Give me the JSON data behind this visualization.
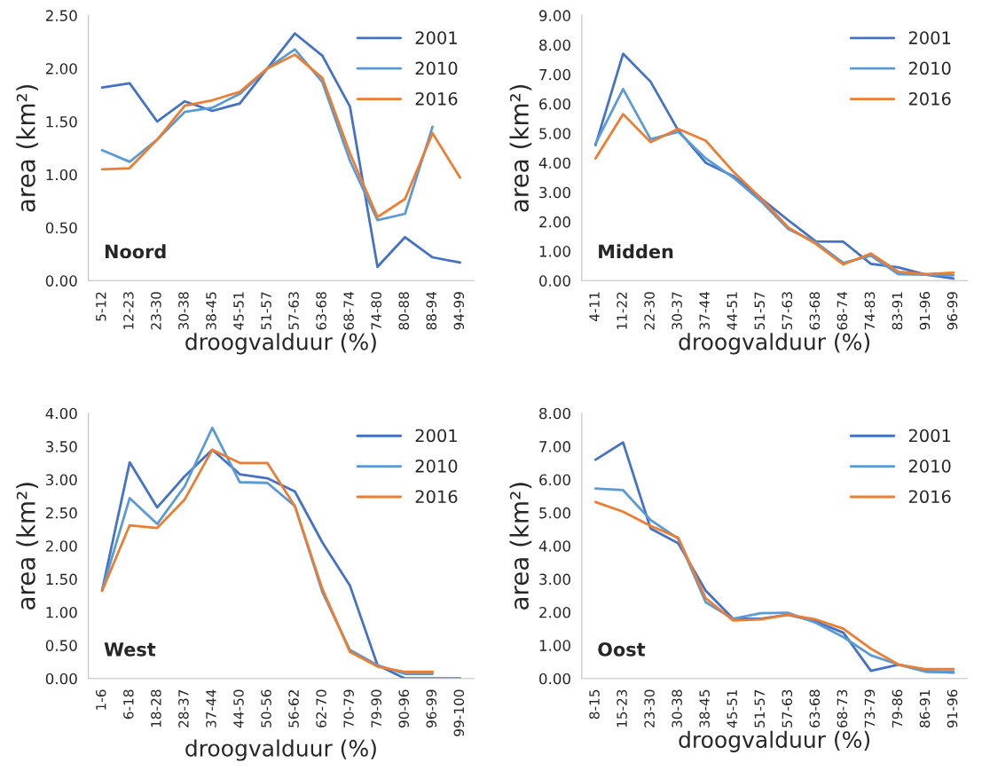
{
  "chart_data": [
    {
      "type": "line",
      "xlabel": "droogvalduur (%)",
      "ylabel": "area (km²)",
      "annotations": [
        "Noord"
      ],
      "legend": "top right",
      "grid": false,
      "categories": [
        "5-12",
        "12-23",
        "23-30",
        "30-38",
        "38-45",
        "45-51",
        "51-57",
        "57-63",
        "63-68",
        "68-74",
        "74-80",
        "80-88",
        "88-94",
        "94-99"
      ],
      "ylim": [
        0,
        2.5
      ],
      "yticks": [
        {
          "value": 0,
          "label": "0.00"
        },
        {
          "value": 0.5,
          "label": "0.50"
        },
        {
          "value": 1,
          "label": "1.00"
        },
        {
          "value": 1.5,
          "label": "1.50"
        },
        {
          "value": 2,
          "label": "2.00"
        },
        {
          "value": 2.5,
          "label": "2.50"
        }
      ],
      "series": [
        {
          "name": "2001",
          "color": "#4472c4",
          "values": [
            1.82,
            1.86,
            1.5,
            1.69,
            1.6,
            1.67,
            2.0,
            2.33,
            2.12,
            1.64,
            0.13,
            0.41,
            0.22,
            0.17
          ]
        },
        {
          "name": "2010",
          "color": "#5b9bd5",
          "values": [
            1.23,
            1.12,
            1.33,
            1.59,
            1.63,
            1.76,
            2.0,
            2.18,
            1.87,
            1.13,
            0.57,
            0.63,
            1.45,
            null
          ]
        },
        {
          "name": "2016",
          "color": "#ed7d31",
          "values": [
            1.05,
            1.06,
            1.33,
            1.65,
            1.7,
            1.78,
            2.0,
            2.13,
            1.91,
            1.2,
            0.6,
            0.77,
            1.39,
            0.97
          ]
        }
      ]
    },
    {
      "type": "line",
      "xlabel": "droogvalduur (%)",
      "ylabel": "area (km²)",
      "annotations": [
        "Midden"
      ],
      "legend": "top right",
      "grid": false,
      "categories": [
        "4-11",
        "11-22",
        "22-30",
        "30-37",
        "37-44",
        "44-51",
        "51-57",
        "57-63",
        "63-68",
        "68-74",
        "74-83",
        "83-91",
        "91-96",
        "96-99"
      ],
      "ylim": [
        0,
        9
      ],
      "yticks": [
        {
          "value": 0,
          "label": "0.00"
        },
        {
          "value": 1,
          "label": "1.00"
        },
        {
          "value": 2,
          "label": "2.00"
        },
        {
          "value": 3,
          "label": "3.00"
        },
        {
          "value": 4,
          "label": "4.00"
        },
        {
          "value": 5,
          "label": "5.00"
        },
        {
          "value": 6,
          "label": "6.00"
        },
        {
          "value": 7,
          "label": "7.00"
        },
        {
          "value": 8,
          "label": "8.00"
        },
        {
          "value": 9,
          "label": "9.00"
        }
      ],
      "series": [
        {
          "name": "2001",
          "color": "#4472c4",
          "values": [
            4.6,
            7.7,
            6.75,
            5.1,
            4.0,
            3.55,
            2.8,
            2.05,
            1.33,
            1.32,
            0.57,
            0.45,
            0.2,
            0.07
          ]
        },
        {
          "name": "2010",
          "color": "#5b9bd5",
          "values": [
            4.65,
            6.5,
            4.8,
            5.05,
            4.15,
            3.5,
            2.7,
            1.75,
            1.3,
            0.6,
            0.85,
            0.22,
            0.2,
            0.18
          ]
        },
        {
          "name": "2016",
          "color": "#ed7d31",
          "values": [
            4.15,
            5.65,
            4.7,
            5.15,
            4.75,
            3.7,
            2.8,
            1.8,
            1.25,
            0.55,
            0.92,
            0.3,
            0.22,
            0.27
          ]
        }
      ]
    },
    {
      "type": "line",
      "xlabel": "droogvalduur (%)",
      "ylabel": "area (km²)",
      "annotations": [
        "West"
      ],
      "legend": "top right",
      "grid": false,
      "categories": [
        "1-6",
        "6-18",
        "18-28",
        "28-37",
        "37-44",
        "44-50",
        "50-56",
        "56-62",
        "62-70",
        "70-79",
        "79-90",
        "90-96",
        "96-99",
        "99-100"
      ],
      "ylim": [
        0,
        4
      ],
      "yticks": [
        {
          "value": 0,
          "label": "0.00"
        },
        {
          "value": 0.5,
          "label": "0.50"
        },
        {
          "value": 1,
          "label": "1.00"
        },
        {
          "value": 1.5,
          "label": "1.50"
        },
        {
          "value": 2,
          "label": "2.00"
        },
        {
          "value": 2.5,
          "label": "2.50"
        },
        {
          "value": 3,
          "label": "3.00"
        },
        {
          "value": 3.5,
          "label": "3.50"
        },
        {
          "value": 4,
          "label": "4.00"
        }
      ],
      "series": [
        {
          "name": "2001",
          "color": "#4472c4",
          "values": [
            1.33,
            3.26,
            2.58,
            3.05,
            3.45,
            3.08,
            3.02,
            2.82,
            2.05,
            1.4,
            0.2,
            0.0,
            0.0,
            0.0
          ]
        },
        {
          "name": "2010",
          "color": "#5b9bd5",
          "values": [
            1.33,
            2.72,
            2.33,
            2.9,
            3.78,
            2.96,
            2.95,
            2.6,
            1.3,
            0.43,
            0.2,
            0.07,
            0.07,
            null
          ]
        },
        {
          "name": "2016",
          "color": "#ed7d31",
          "values": [
            1.32,
            2.31,
            2.27,
            2.7,
            3.45,
            3.25,
            3.25,
            2.6,
            1.35,
            0.4,
            0.18,
            0.1,
            0.1,
            null
          ]
        }
      ]
    },
    {
      "type": "line",
      "xlabel": "droogvalduur (%)",
      "ylabel": "area (km²)",
      "annotations": [
        "Oost"
      ],
      "legend": "top right",
      "grid": false,
      "categories": [
        "8-15",
        "15-23",
        "23-30",
        "30-38",
        "38-45",
        "45-51",
        "51-57",
        "57-63",
        "63-68",
        "68-73",
        "73-79",
        "79-86",
        "86-91",
        "91-96"
      ],
      "ylim": [
        0,
        8
      ],
      "yticks": [
        {
          "value": 0,
          "label": "0.00"
        },
        {
          "value": 1,
          "label": "1.00"
        },
        {
          "value": 2,
          "label": "2.00"
        },
        {
          "value": 3,
          "label": "3.00"
        },
        {
          "value": 4,
          "label": "4.00"
        },
        {
          "value": 5,
          "label": "5.00"
        },
        {
          "value": 6,
          "label": "6.00"
        },
        {
          "value": 7,
          "label": "7.00"
        },
        {
          "value": 8,
          "label": "8.00"
        }
      ],
      "series": [
        {
          "name": "2001",
          "color": "#4472c4",
          "values": [
            6.6,
            7.12,
            4.52,
            4.08,
            2.65,
            1.8,
            1.8,
            1.92,
            1.72,
            1.38,
            0.23,
            0.42,
            0.22,
            0.18
          ]
        },
        {
          "name": "2010",
          "color": "#5b9bd5",
          "values": [
            5.73,
            5.68,
            4.78,
            4.22,
            2.3,
            1.8,
            1.97,
            1.98,
            1.68,
            1.25,
            0.7,
            0.42,
            0.2,
            0.2
          ]
        },
        {
          "name": "2016",
          "color": "#ed7d31",
          "values": [
            5.32,
            5.03,
            4.6,
            4.25,
            2.42,
            1.75,
            1.78,
            1.92,
            1.78,
            1.5,
            0.9,
            0.42,
            0.28,
            0.28
          ]
        }
      ]
    }
  ]
}
